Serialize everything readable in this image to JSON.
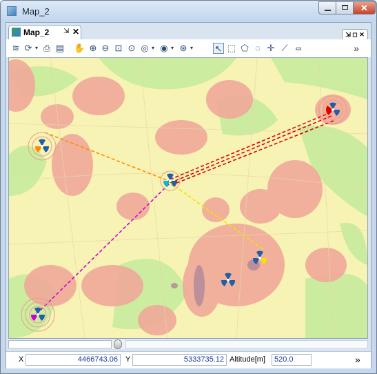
{
  "window": {
    "title": "Map_2"
  },
  "tab": {
    "label": "Map_2",
    "pin": "⇲",
    "close": "✕"
  },
  "view_buttons": "⇲ ◻ ✕",
  "toolbar_icons": [
    "layers-icon",
    "refresh-icon",
    "print-icon",
    "save-icon",
    "pan-icon",
    "zoom-in-icon",
    "zoom-out-icon",
    "zoom-box-icon",
    "zoom-extent-icon",
    "zoom-layer-icon",
    "zoom-selection-icon",
    "zoom-scale-icon",
    "select-arrow-icon",
    "select-rect-icon",
    "select-polygon-icon",
    "select-circle-icon",
    "crosshair-icon",
    "measure-icon",
    "scale-bar-icon"
  ],
  "toolbar_more": "»",
  "status": {
    "x_label": "X",
    "x_value": "4466743.06",
    "y_label": "Y",
    "y_value": "5333735.12",
    "altitude_label": "Altitude[m]",
    "altitude_value": "520.0",
    "more": "»"
  },
  "map": {
    "background_color": "#f7f3b4",
    "coverage_colors": {
      "green": "#c9eb9e",
      "pink": "#f0a99a",
      "dark": "#b48a9a"
    },
    "sites": [
      {
        "name": "site-center",
        "beam_color": "#00bcd4"
      },
      {
        "name": "site-top-left",
        "beam_color": "#ff8c00"
      },
      {
        "name": "site-top-right",
        "beam_color": "#e00000"
      },
      {
        "name": "site-bottom-left",
        "beam_color": "#d100d1"
      },
      {
        "name": "site-mid-right",
        "beam_color": "#f5e400"
      },
      {
        "name": "site-center-low",
        "beam_color": "#1f5fa8"
      }
    ],
    "links_colors": [
      "#ff8c00",
      "#e00000",
      "#d100d1",
      "#f5e400"
    ]
  }
}
